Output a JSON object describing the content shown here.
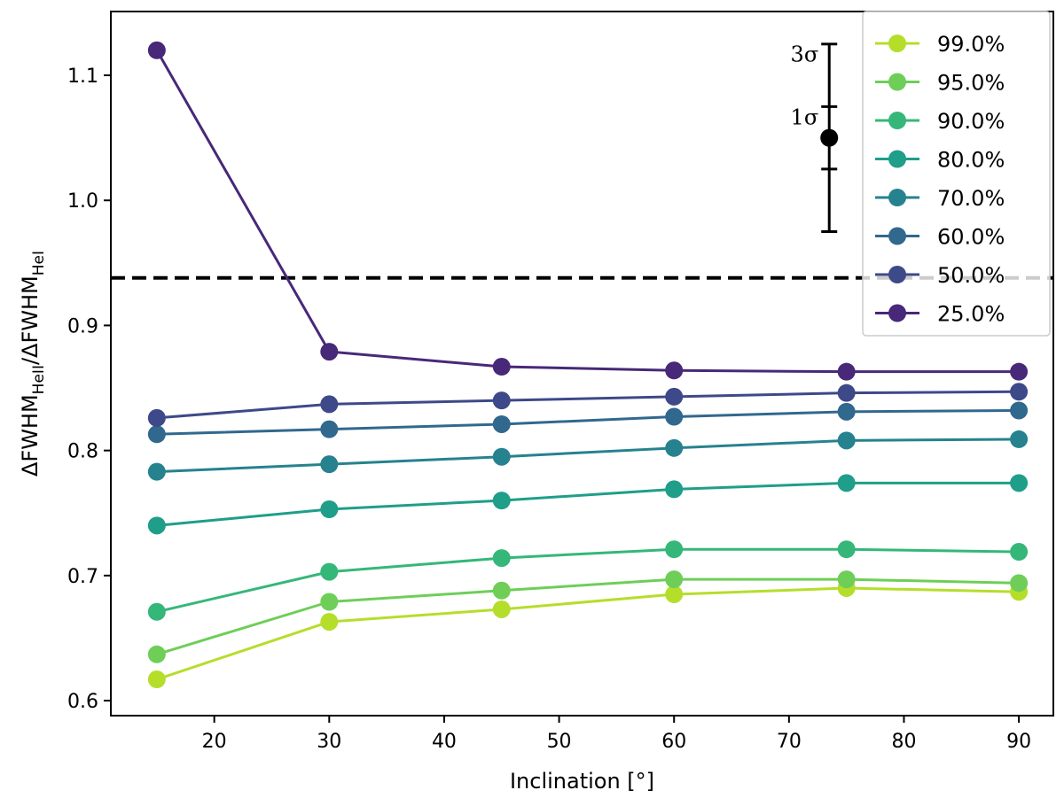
{
  "chart_data": {
    "type": "line",
    "xlabel": "Inclination [°]",
    "ylabel_main": "ΔFWHM",
    "ylabel_sub": "HeII",
    "ylabel_sep": "/",
    "ylabel_main2": "ΔFWHM",
    "ylabel_sub2": "HeI",
    "xlim": [
      11,
      93
    ],
    "ylim": [
      0.588,
      1.151
    ],
    "x_ticks": [
      20,
      30,
      40,
      50,
      60,
      70,
      80,
      90
    ],
    "x_tick_labels": [
      "20",
      "30",
      "40",
      "50",
      "60",
      "70",
      "80",
      "90"
    ],
    "y_ticks": [
      0.6,
      0.7,
      0.8,
      0.9,
      1.0,
      1.1
    ],
    "y_tick_labels": [
      "0.6",
      "0.7",
      "0.8",
      "0.9",
      "1.0",
      "1.1"
    ],
    "x": [
      15,
      30,
      45,
      60,
      75,
      90
    ],
    "legend_position": "upper right",
    "series": [
      {
        "name": "99.0%",
        "color": "#b5de2b",
        "values": [
          0.617,
          0.663,
          0.673,
          0.685,
          0.69,
          0.687
        ]
      },
      {
        "name": "95.0%",
        "color": "#6ece58",
        "values": [
          0.637,
          0.679,
          0.688,
          0.697,
          0.697,
          0.694
        ]
      },
      {
        "name": "90.0%",
        "color": "#35b779",
        "values": [
          0.671,
          0.703,
          0.714,
          0.721,
          0.721,
          0.719
        ]
      },
      {
        "name": "80.0%",
        "color": "#1f9e89",
        "values": [
          0.74,
          0.753,
          0.76,
          0.769,
          0.774,
          0.774
        ]
      },
      {
        "name": "70.0%",
        "color": "#26828e",
        "values": [
          0.783,
          0.789,
          0.795,
          0.802,
          0.808,
          0.809
        ]
      },
      {
        "name": "60.0%",
        "color": "#31688e",
        "values": [
          0.813,
          0.817,
          0.821,
          0.827,
          0.831,
          0.832
        ]
      },
      {
        "name": "50.0%",
        "color": "#3e4989",
        "values": [
          0.826,
          0.837,
          0.84,
          0.843,
          0.846,
          0.847
        ]
      },
      {
        "name": "25.0%",
        "color": "#482878",
        "values": [
          1.12,
          0.879,
          0.867,
          0.864,
          0.863,
          0.863
        ]
      }
    ],
    "hline": {
      "y": 0.938,
      "style": "dashed",
      "color": "#000000"
    },
    "error_bar": {
      "x": 73.5,
      "y": 1.05,
      "sigma1": [
        1.025,
        1.075
      ],
      "sigma3": [
        0.975,
        1.125
      ],
      "label_1sigma": "1σ",
      "label_3sigma": "3σ",
      "color": "#000000"
    }
  }
}
